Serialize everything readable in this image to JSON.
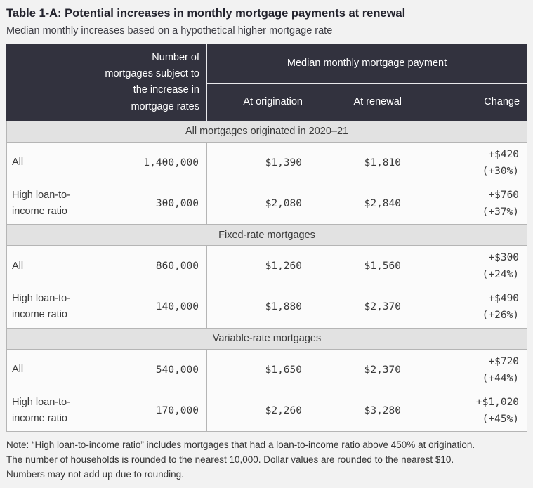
{
  "page": {
    "title": "Table 1-A: Potential increases in monthly mortgage payments at renewal",
    "subtitle": "Median monthly increases based on a hypothetical higher mortgage rate",
    "note_lines": [
      "Note: “High loan-to-income ratio” includes mortgages that had a loan-to-income ratio above 450% at origination.",
      "The number of households is rounded to the nearest 10,000. Dollar values are rounded to the nearest $10.",
      "Numbers may not add up due to rounding."
    ]
  },
  "table": {
    "header": {
      "count_col": "Number of mortgages subject to the increase in mortgage rates",
      "group": "Median monthly mortgage payment",
      "sub_cols": [
        "At origination",
        "At renewal",
        "Change"
      ]
    },
    "sections": [
      {
        "label": "All mortgages originated in 2020–21",
        "rows": [
          {
            "label": "All",
            "count": "1,400,000",
            "origination": "$1,390",
            "renewal": "$1,810",
            "change_amount": "+$420",
            "change_pct": "(+30%)"
          },
          {
            "label": "High loan-to-income ratio",
            "count": "300,000",
            "origination": "$2,080",
            "renewal": "$2,840",
            "change_amount": "+$760",
            "change_pct": "(+37%)"
          }
        ]
      },
      {
        "label": "Fixed-rate mortgages",
        "rows": [
          {
            "label": "All",
            "count": "860,000",
            "origination": "$1,260",
            "renewal": "$1,560",
            "change_amount": "+$300",
            "change_pct": "(+24%)"
          },
          {
            "label": "High loan-to-income ratio",
            "count": "140,000",
            "origination": "$1,880",
            "renewal": "$2,370",
            "change_amount": "+$490",
            "change_pct": "(+26%)"
          }
        ]
      },
      {
        "label": "Variable-rate mortgages",
        "rows": [
          {
            "label": "All",
            "count": "540,000",
            "origination": "$1,650",
            "renewal": "$2,370",
            "change_amount": "+$720",
            "change_pct": "(+44%)"
          },
          {
            "label": "High loan-to-income ratio",
            "count": "170,000",
            "origination": "$2,260",
            "renewal": "$3,280",
            "change_amount": "+$1,020",
            "change_pct": "(+45%)"
          }
        ]
      }
    ]
  },
  "colors": {
    "header_bg": "#32323e",
    "header_text": "#ffffff",
    "section_bg": "#e2e2e2",
    "page_bg": "#f2f2f2",
    "border": "#b5b5b5",
    "title_text": "#23232d"
  },
  "chart_data": {
    "type": "table",
    "title": "Table 1-A: Potential increases in monthly mortgage payments at renewal",
    "subtitle": "Median monthly increases based on a hypothetical higher mortgage rate",
    "columns": [
      "Group",
      "Number of mortgages subject to the increase in mortgage rates",
      "Median monthly mortgage payment — At origination ($)",
      "Median monthly mortgage payment — At renewal ($)",
      "Median monthly mortgage payment — Change ($)",
      "Median monthly mortgage payment — Change (%)"
    ],
    "sections": [
      {
        "section": "All mortgages originated in 2020–21",
        "rows": [
          [
            "All",
            1400000,
            1390,
            1810,
            420,
            30
          ],
          [
            "High loan-to-income ratio",
            300000,
            2080,
            2840,
            760,
            37
          ]
        ]
      },
      {
        "section": "Fixed-rate mortgages",
        "rows": [
          [
            "All",
            860000,
            1260,
            1560,
            300,
            24
          ],
          [
            "High loan-to-income ratio",
            140000,
            1880,
            2370,
            490,
            26
          ]
        ]
      },
      {
        "section": "Variable-rate mortgages",
        "rows": [
          [
            "All",
            540000,
            1650,
            2370,
            720,
            44
          ],
          [
            "High loan-to-income ratio",
            170000,
            2260,
            3280,
            1020,
            45
          ]
        ]
      }
    ],
    "note": "Note: “High loan-to-income ratio” includes mortgages that had a loan-to-income ratio above 450% at origination. The number of households is rounded to the nearest 10,000. Dollar values are rounded to the nearest $10. Numbers may not add up due to rounding."
  }
}
